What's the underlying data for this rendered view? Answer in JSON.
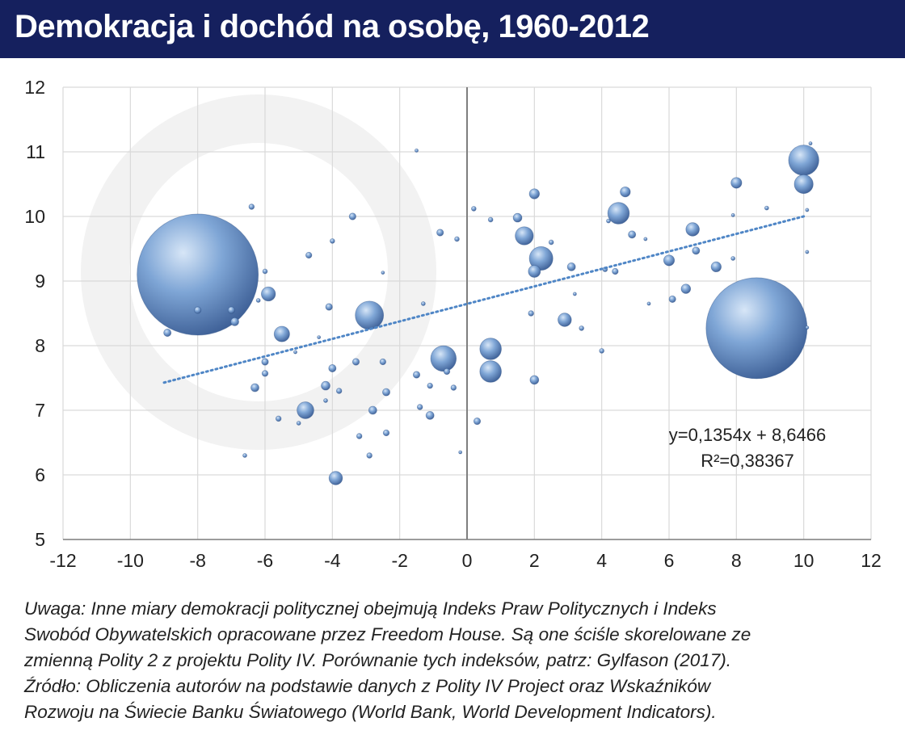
{
  "title": "Demokracja i dochód na osobę, 1960-2012",
  "colors": {
    "header_bg": "#15205e",
    "bubble": "#6f97cb",
    "bubble_dark": "#2d4f86",
    "trendline": "#4f86c6",
    "grid": "#d9d9d9",
    "axis": "#7f7f7f"
  },
  "chart_data": {
    "type": "scatter",
    "variant": "bubble",
    "title": "",
    "xlabel": "",
    "ylabel": "",
    "xlim": [
      -12,
      12
    ],
    "ylim": [
      5,
      12
    ],
    "x_ticks": [
      "-12",
      "-10",
      "-8",
      "-6",
      "-4",
      "-2",
      "0",
      "2",
      "4",
      "6",
      "8",
      "10",
      "12"
    ],
    "y_ticks": [
      "5",
      "6",
      "7",
      "8",
      "9",
      "10",
      "11",
      "12"
    ],
    "grid": true,
    "trendline": {
      "style": "dotted",
      "slope": 0.1354,
      "intercept": 8.6466,
      "x_range": [
        -9,
        10
      ]
    },
    "equation": "y=0,1354x + 8,6466",
    "r_squared": "R²=0,38367",
    "points": [
      [
        -8,
        9.1,
        18
      ],
      [
        -2.9,
        8.47,
        4.2
      ],
      [
        8.6,
        8.27,
        15
      ],
      [
        10,
        10.87,
        4.5
      ],
      [
        10,
        10.5,
        2.8
      ],
      [
        -0.7,
        7.8,
        3.8
      ],
      [
        0.7,
        7.95,
        3.2
      ],
      [
        0.7,
        7.6,
        3.2
      ],
      [
        2.2,
        9.35,
        3.5
      ],
      [
        1.7,
        9.7,
        2.7
      ],
      [
        4.5,
        10.05,
        3.2
      ],
      [
        -5.5,
        8.18,
        2.3
      ],
      [
        -4.8,
        7,
        2.5
      ],
      [
        -5.9,
        8.8,
        2.1
      ],
      [
        -3.9,
        5.95,
        2
      ],
      [
        6.7,
        9.8,
        2
      ],
      [
        4.7,
        10.38,
        1.5
      ],
      [
        2,
        10.35,
        1.5
      ],
      [
        1.5,
        9.98,
        1.3
      ],
      [
        2,
        9.15,
        1.8
      ],
      [
        2.9,
        8.4,
        2
      ],
      [
        6,
        9.32,
        1.6
      ],
      [
        6.5,
        8.88,
        1.4
      ],
      [
        7.4,
        9.22,
        1.5
      ],
      [
        8,
        10.52,
        1.6
      ],
      [
        -8,
        8.55,
        1
      ],
      [
        -7,
        8.55,
        1
      ],
      [
        -6.9,
        8.37,
        1.2
      ],
      [
        -8.9,
        8.2,
        1.1
      ],
      [
        -6.3,
        7.35,
        1.2
      ],
      [
        -6,
        7.75,
        1
      ],
      [
        -6,
        7.57,
        0.9
      ],
      [
        -6.2,
        8.7,
        0.6
      ],
      [
        -4.2,
        7.38,
        1.3
      ],
      [
        -4,
        7.65,
        1.1
      ],
      [
        -3.3,
        7.75,
        1
      ],
      [
        -2.8,
        7,
        1.2
      ],
      [
        -2.5,
        7.75,
        0.9
      ],
      [
        -2.4,
        7.28,
        1.1
      ],
      [
        -1.5,
        7.55,
        1
      ],
      [
        -1.1,
        6.92,
        1.2
      ],
      [
        -1.4,
        7.05,
        0.8
      ],
      [
        -1.1,
        7.38,
        0.8
      ],
      [
        -0.4,
        7.35,
        0.8
      ],
      [
        -0.6,
        7.6,
        0.9
      ],
      [
        -2.4,
        6.65,
        0.9
      ],
      [
        -3.2,
        6.6,
        0.8
      ],
      [
        -2.9,
        6.3,
        0.8
      ],
      [
        0.3,
        6.83,
        1
      ],
      [
        -0.8,
        9.75,
        1
      ],
      [
        -0.3,
        9.65,
        0.7
      ],
      [
        0.2,
        10.12,
        0.7
      ],
      [
        0.7,
        9.95,
        0.7
      ],
      [
        -3.4,
        10,
        1
      ],
      [
        -4,
        9.62,
        0.7
      ],
      [
        -4.7,
        9.4,
        0.9
      ],
      [
        -6.4,
        10.15,
        0.8
      ],
      [
        -6,
        9.15,
        0.7
      ],
      [
        -4.1,
        8.6,
        1
      ],
      [
        -5.6,
        6.87,
        0.8
      ],
      [
        -6.6,
        6.3,
        0.6
      ],
      [
        -5,
        6.8,
        0.6
      ],
      [
        -3.8,
        7.3,
        0.8
      ],
      [
        -4.2,
        7.15,
        0.6
      ],
      [
        -1.3,
        8.65,
        0.6
      ],
      [
        1.9,
        8.5,
        0.8
      ],
      [
        2.5,
        9.6,
        0.7
      ],
      [
        3.1,
        9.22,
        1.2
      ],
      [
        3.4,
        8.27,
        0.7
      ],
      [
        4.1,
        9.18,
        0.7
      ],
      [
        4.4,
        9.15,
        0.9
      ],
      [
        4.2,
        9.93,
        0.6
      ],
      [
        4.9,
        9.72,
        1.1
      ],
      [
        4,
        7.92,
        0.7
      ],
      [
        2,
        7.47,
        1.3
      ],
      [
        5.3,
        9.65,
        0.5
      ],
      [
        5.4,
        8.65,
        0.5
      ],
      [
        6.1,
        8.72,
        1
      ],
      [
        6.8,
        9.47,
        1.1
      ],
      [
        7.9,
        9.35,
        0.6
      ],
      [
        7.9,
        10.02,
        0.5
      ],
      [
        8.9,
        10.13,
        0.6
      ],
      [
        10.1,
        10.1,
        0.5
      ],
      [
        10.1,
        9.45,
        0.5
      ],
      [
        10.1,
        8.28,
        0.4
      ],
      [
        10.2,
        11.13,
        0.5
      ],
      [
        -1.5,
        11.02,
        0.5
      ],
      [
        -0.2,
        6.35,
        0.4
      ],
      [
        -4.4,
        8.13,
        0.4
      ],
      [
        -5.1,
        7.9,
        0.5
      ],
      [
        -2.5,
        9.13,
        0.4
      ],
      [
        3.2,
        8.8,
        0.5
      ]
    ]
  },
  "note_lines": [
    "Uwaga: Inne miary demokracji politycznej obejmują Indeks Praw Politycznych i Indeks",
    "Swobód Obywatelskich opracowane przez Freedom House. Są one ściśle skorelowane ze",
    "zmienną Polity 2 z projektu Polity IV. Porównanie tych indeksów, patrz: Gylfason (2017).",
    "Źródło: Obliczenia autorów na podstawie danych z Polity IV Project oraz Wskaźników",
    "Rozwoju na Świecie Banku Światowego (World Bank, World Development Indicators)."
  ]
}
